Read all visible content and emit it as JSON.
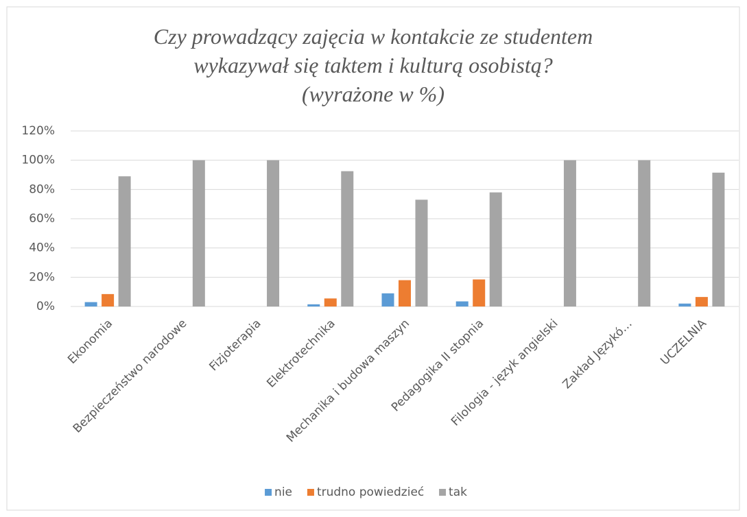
{
  "chart_data": {
    "type": "bar",
    "title": "Czy prowadzący zajęcia w kontakcie ze studentem\nwykazywał się taktem i kulturą osobistą?\n(wyrażone w %)",
    "categories": [
      "Ekonomia",
      "Bezpieczeństwo narodowe",
      "Fizjoterapia",
      "Elektrotechnika",
      "Mechanika i budowa maszyn",
      "Pedagogika II stopnia",
      "Filologia - język angielski",
      "Zakład Językó…",
      "UCZELNIA"
    ],
    "series": [
      {
        "name": "nie",
        "color": "#5b9bd5",
        "values": [
          3,
          0,
          0,
          1.5,
          9,
          3.5,
          0,
          0,
          2
        ]
      },
      {
        "name": "trudno powiedzieć",
        "color": "#ed7d31",
        "values": [
          8.5,
          0,
          0,
          5.5,
          18,
          18.5,
          0,
          0,
          6.5
        ]
      },
      {
        "name": "tak",
        "color": "#a5a5a5",
        "values": [
          89,
          100,
          100,
          92.5,
          73,
          78,
          100,
          100,
          91.5
        ]
      }
    ],
    "ylim": [
      0,
      120
    ],
    "yticks": [
      {
        "value": 0,
        "label": "0%"
      },
      {
        "value": 20,
        "label": "20%"
      },
      {
        "value": 40,
        "label": "40%"
      },
      {
        "value": 60,
        "label": "60%"
      },
      {
        "value": 80,
        "label": "80%"
      },
      {
        "value": 100,
        "label": "100%"
      },
      {
        "value": 120,
        "label": "120%"
      }
    ],
    "grid": true,
    "legend": "bottom"
  }
}
